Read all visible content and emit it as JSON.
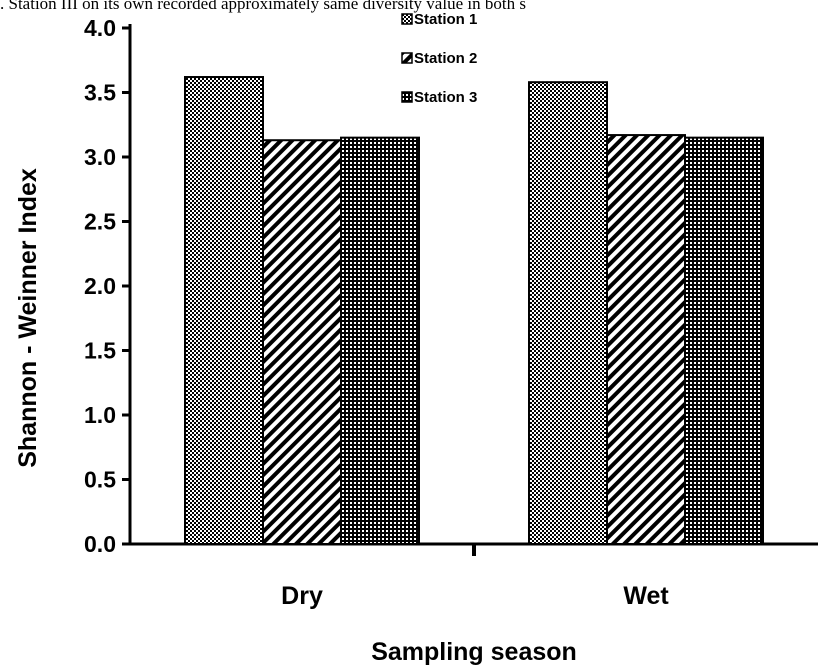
{
  "header_text": ". Station III on its own recorded approximately same diversity value in both s",
  "chart_data": {
    "type": "bar",
    "title": "",
    "xlabel": "Sampling season",
    "ylabel": "Shannon - Weinner Index",
    "categories": [
      "Dry",
      "Wet"
    ],
    "series": [
      {
        "name": "Station 1",
        "values": [
          3.62,
          3.58
        ],
        "pattern": "dots"
      },
      {
        "name": "Station 2",
        "values": [
          3.13,
          3.17
        ],
        "pattern": "diagonal"
      },
      {
        "name": "Station 3",
        "values": [
          3.15,
          3.15
        ],
        "pattern": "grid"
      }
    ],
    "ylim": [
      0,
      4.0
    ],
    "yticks": [
      "0.0",
      "0.5",
      "1.0",
      "1.5",
      "2.0",
      "2.5",
      "3.0",
      "3.5",
      "4.0"
    ],
    "grid": false,
    "legend_position": "top-center",
    "colors": {
      "fill": "#ffffff",
      "ink": "#000000"
    }
  }
}
